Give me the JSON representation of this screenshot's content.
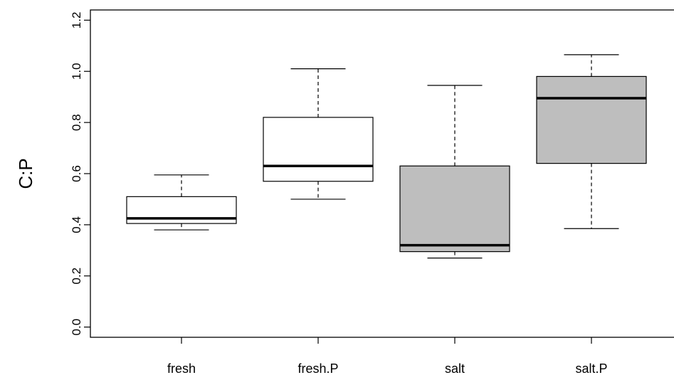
{
  "chart_data": {
    "type": "boxplot",
    "ylabel": "C:P",
    "xlabel": "",
    "title": "",
    "ylim": [
      -0.04,
      1.24
    ],
    "yticks": [
      0.0,
      0.2,
      0.4,
      0.6,
      0.8,
      1.0,
      1.2
    ],
    "ytick_labels": [
      "0.0",
      "0.2",
      "0.4",
      "0.6",
      "0.8",
      "1.0",
      "1.2"
    ],
    "categories": [
      "fresh",
      "fresh.P",
      "salt",
      "salt.P"
    ],
    "boxes": [
      {
        "name": "fresh",
        "whisker_low": 0.38,
        "q1": 0.405,
        "median": 0.425,
        "q3": 0.51,
        "whisker_high": 0.595,
        "fill": "#ffffff"
      },
      {
        "name": "fresh.P",
        "whisker_low": 0.5,
        "q1": 0.57,
        "median": 0.63,
        "q3": 0.82,
        "whisker_high": 1.01,
        "fill": "#ffffff"
      },
      {
        "name": "salt",
        "whisker_low": 0.27,
        "q1": 0.295,
        "median": 0.32,
        "q3": 0.63,
        "whisker_high": 0.945,
        "fill": "#bebebe"
      },
      {
        "name": "salt.P",
        "whisker_low": 0.385,
        "q1": 0.64,
        "median": 0.895,
        "q3": 0.98,
        "whisker_high": 1.065,
        "fill": "#bebebe"
      }
    ],
    "grid": false
  }
}
